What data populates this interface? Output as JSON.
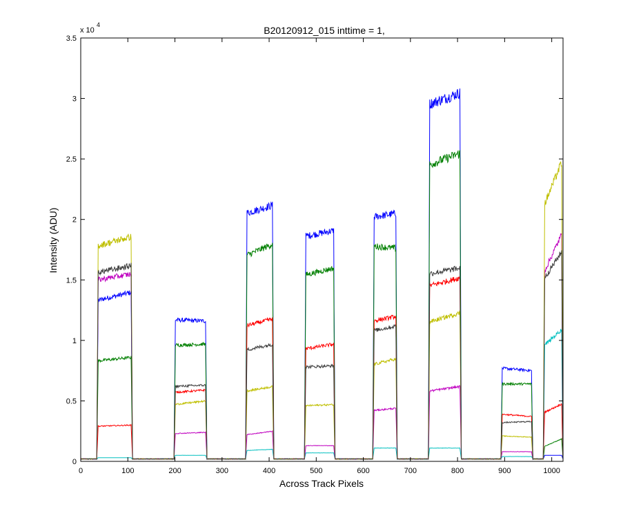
{
  "chart_data": {
    "type": "line",
    "title": "B20120912_015 inttime = 1,",
    "xlabel": "Across Track Pixels",
    "ylabel": "Intensity (ADU)",
    "y_multiplier_label": "x 10",
    "y_multiplier_exponent": "4",
    "xlim": [
      0,
      1024
    ],
    "ylim": [
      0,
      35000
    ],
    "x_ticks": [
      0,
      100,
      200,
      300,
      400,
      500,
      600,
      700,
      800,
      900,
      1000
    ],
    "x_tick_labels": [
      "0",
      "100",
      "200",
      "300",
      "400",
      "500",
      "600",
      "700",
      "800",
      "900",
      "1000"
    ],
    "y_ticks": [
      0,
      5000,
      10000,
      15000,
      20000,
      25000,
      30000,
      35000
    ],
    "y_tick_labels": [
      "0",
      "0.5",
      "1",
      "1.5",
      "2",
      "2.5",
      "3",
      "3.5"
    ],
    "grid": false,
    "legend": "none",
    "baseline": 200,
    "regions": [
      {
        "x0": 34,
        "x1": 110
      },
      {
        "x0": 198,
        "x1": 268
      },
      {
        "x0": 350,
        "x1": 410
      },
      {
        "x0": 475,
        "x1": 540
      },
      {
        "x0": 620,
        "x1": 672
      },
      {
        "x0": 738,
        "x1": 808
      },
      {
        "x0": 892,
        "x1": 960
      },
      {
        "x0": 982,
        "x1": 1024
      }
    ],
    "series": [
      {
        "color": "#0000ff",
        "levels": [
          [
            13300,
            14000
          ],
          [
            11700,
            11600
          ],
          [
            20500,
            21200
          ],
          [
            18600,
            19100
          ],
          [
            20200,
            20500
          ],
          [
            29500,
            30500
          ],
          [
            7700,
            7500
          ],
          [
            500,
            500
          ]
        ]
      },
      {
        "color": "#007f00",
        "levels": [
          [
            8300,
            8600
          ],
          [
            9600,
            9700
          ],
          [
            17000,
            18000
          ],
          [
            15400,
            16000
          ],
          [
            17800,
            17600
          ],
          [
            24500,
            25500
          ],
          [
            6400,
            6400
          ],
          [
            1200,
            1900
          ]
        ]
      },
      {
        "color": "#ff0000",
        "levels": [
          [
            2900,
            3000
          ],
          [
            5700,
            5900
          ],
          [
            11200,
            11800
          ],
          [
            9300,
            9700
          ],
          [
            11600,
            12000
          ],
          [
            14500,
            15200
          ],
          [
            3900,
            3700
          ],
          [
            4000,
            4800
          ]
        ]
      },
      {
        "color": "#00bfbf",
        "levels": [
          [
            300,
            300
          ],
          [
            500,
            500
          ],
          [
            900,
            1000
          ],
          [
            700,
            700
          ],
          [
            1100,
            1100
          ],
          [
            1100,
            1100
          ],
          [
            400,
            400
          ],
          [
            9500,
            11000
          ]
        ]
      },
      {
        "color": "#bf00bf",
        "levels": [
          [
            15000,
            15500
          ],
          [
            2300,
            2400
          ],
          [
            2200,
            2500
          ],
          [
            1300,
            1300
          ],
          [
            4200,
            4400
          ],
          [
            5800,
            6200
          ],
          [
            800,
            800
          ],
          [
            15500,
            19000
          ]
        ]
      },
      {
        "color": "#bfbf00",
        "levels": [
          [
            17800,
            18600
          ],
          [
            4700,
            5000
          ],
          [
            5800,
            6200
          ],
          [
            4600,
            4700
          ],
          [
            8000,
            8500
          ],
          [
            11500,
            12300
          ],
          [
            2100,
            2000
          ],
          [
            21000,
            25000
          ]
        ]
      },
      {
        "color": "#3f3f3f",
        "levels": [
          [
            15600,
            16200
          ],
          [
            6200,
            6300
          ],
          [
            9200,
            9700
          ],
          [
            7800,
            7900
          ],
          [
            10800,
            11200
          ],
          [
            15500,
            16000
          ],
          [
            3200,
            3300
          ],
          [
            15000,
            17500
          ]
        ]
      }
    ]
  }
}
